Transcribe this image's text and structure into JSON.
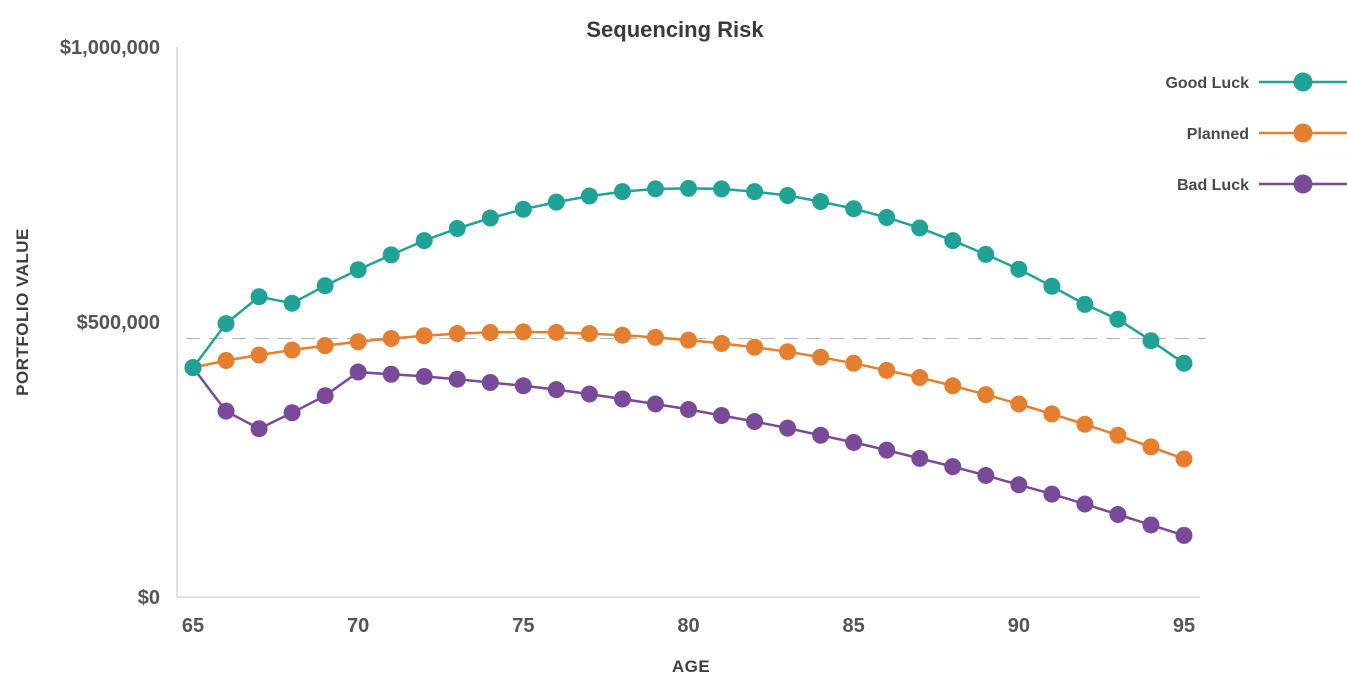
{
  "chart_data": {
    "type": "line",
    "title": "Sequencing Risk",
    "xlabel": "AGE",
    "ylabel": "PORTFOLIO VALUE",
    "x": [
      65,
      66,
      67,
      68,
      69,
      70,
      71,
      72,
      73,
      74,
      75,
      76,
      77,
      78,
      79,
      80,
      81,
      82,
      83,
      84,
      85,
      86,
      87,
      88,
      89,
      90,
      91,
      92,
      93,
      94,
      95
    ],
    "xlim": [
      65,
      95
    ],
    "ylim": [
      0,
      1000000
    ],
    "x_ticks": [
      65,
      70,
      75,
      80,
      85,
      90,
      95
    ],
    "x_tick_labels": [
      "65",
      "70",
      "75",
      "80",
      "85",
      "90",
      "95"
    ],
    "y_ticks": [
      0,
      500000,
      1000000
    ],
    "y_tick_labels": [
      "$0",
      "$500,000",
      "$1,000,000"
    ],
    "reference_line": 470000,
    "grid": false,
    "legend_position": "top-right",
    "series": [
      {
        "name": "Good Luck",
        "color": "#20a396",
        "values": [
          417000,
          497000,
          546000,
          534000,
          566000,
          595000,
          622000,
          648000,
          670000,
          689000,
          705000,
          718000,
          729000,
          737000,
          742000,
          743000,
          742000,
          737000,
          730000,
          719000,
          706000,
          690000,
          671000,
          648000,
          623000,
          596000,
          565000,
          532000,
          505000,
          466000,
          425000
        ]
      },
      {
        "name": "Planned",
        "color": "#e57e2e",
        "values": [
          417000,
          430000,
          440000,
          449000,
          457000,
          464000,
          470000,
          475000,
          479000,
          481000,
          482000,
          481000,
          479000,
          476000,
          472000,
          467000,
          461000,
          454000,
          446000,
          436000,
          425000,
          412000,
          399000,
          384000,
          368000,
          351000,
          333000,
          314000,
          294000,
          273000,
          251000
        ]
      },
      {
        "name": "Bad Luck",
        "color": "#7a4a9a",
        "values": [
          417000,
          338000,
          306000,
          335000,
          366000,
          409000,
          405000,
          401000,
          396000,
          390000,
          384000,
          377000,
          369000,
          360000,
          351000,
          341000,
          330000,
          319000,
          307000,
          294000,
          281000,
          267000,
          252000,
          237000,
          221000,
          204000,
          187000,
          169000,
          150000,
          131000,
          112000
        ]
      }
    ]
  }
}
